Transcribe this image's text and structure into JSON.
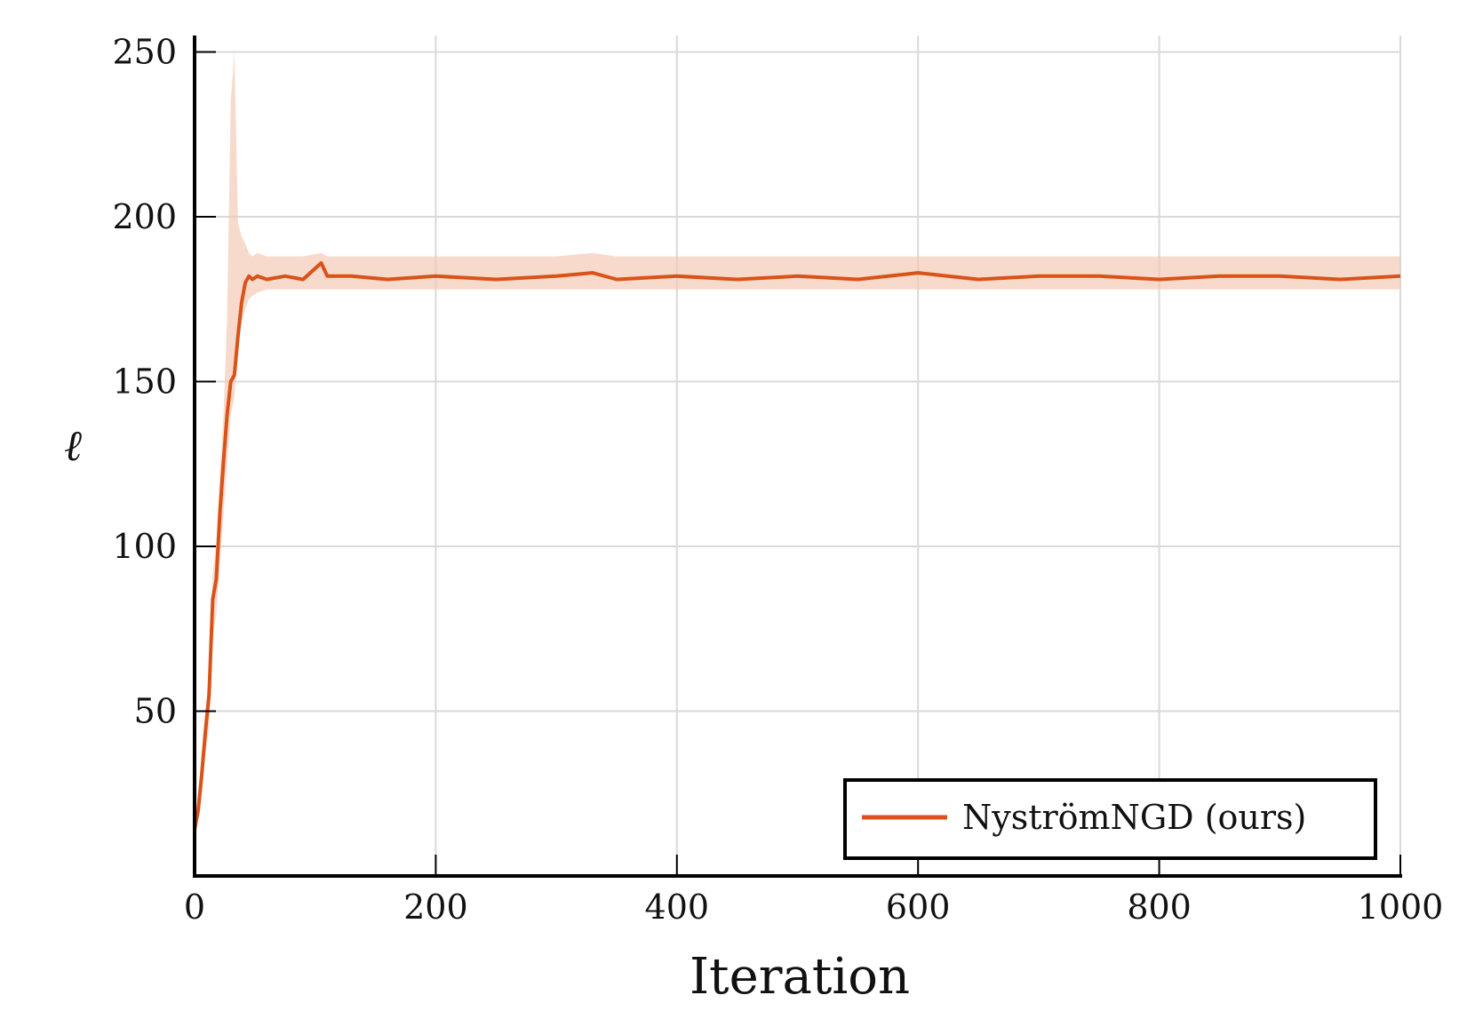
{
  "chart_data": {
    "type": "line",
    "title": "",
    "xlabel": "Iteration",
    "ylabel": "ℓ",
    "xlim": [
      0,
      1000
    ],
    "ylim": [
      0,
      255
    ],
    "xticks": [
      0,
      200,
      400,
      600,
      800,
      1000
    ],
    "xtick_labels": [
      "0",
      "200",
      "400",
      "600",
      "800",
      "1000"
    ],
    "yticks": [
      50,
      100,
      150,
      200,
      250
    ],
    "ytick_labels": [
      "50",
      "100",
      "150",
      "200",
      "250"
    ],
    "grid": true,
    "legend_position": "bottom-right",
    "series": [
      {
        "name": "NyströmNGD (ours)",
        "color": "#d95319",
        "band_color": "#f3c6b0",
        "x": [
          0,
          3,
          6,
          9,
          12,
          15,
          18,
          21,
          24,
          27,
          30,
          33,
          36,
          39,
          42,
          45,
          48,
          52,
          60,
          75,
          90,
          105,
          110,
          130,
          160,
          200,
          250,
          300,
          330,
          350,
          400,
          450,
          500,
          550,
          600,
          650,
          700,
          750,
          800,
          850,
          900,
          950,
          1000
        ],
        "values": [
          14,
          20,
          31,
          44,
          55,
          84,
          90,
          110,
          126,
          140,
          150,
          152,
          164,
          174,
          180,
          182,
          181,
          182,
          181,
          182,
          181,
          186,
          182,
          182,
          181,
          182,
          181,
          182,
          183,
          181,
          182,
          181,
          182,
          181,
          183,
          181,
          182,
          182,
          181,
          182,
          182,
          181,
          182
        ],
        "band_upper": [
          15,
          23,
          36,
          50,
          62,
          92,
          101,
          123,
          140,
          170,
          235,
          250,
          198,
          194,
          192,
          189,
          188,
          189,
          188,
          188,
          188,
          189,
          188,
          188,
          188,
          188,
          188,
          188,
          189,
          188,
          188,
          188,
          188,
          188,
          188,
          188,
          188,
          188,
          188,
          188,
          188,
          188,
          188
        ],
        "band_lower": [
          13,
          17,
          25,
          37,
          45,
          73,
          79,
          95,
          110,
          125,
          140,
          145,
          160,
          168,
          172,
          175,
          176,
          177,
          178,
          178,
          178,
          178,
          178,
          178,
          178,
          178,
          178,
          178,
          178,
          178,
          178,
          178,
          178,
          178,
          178,
          178,
          178,
          178,
          178,
          178,
          178,
          178,
          178
        ]
      }
    ]
  }
}
